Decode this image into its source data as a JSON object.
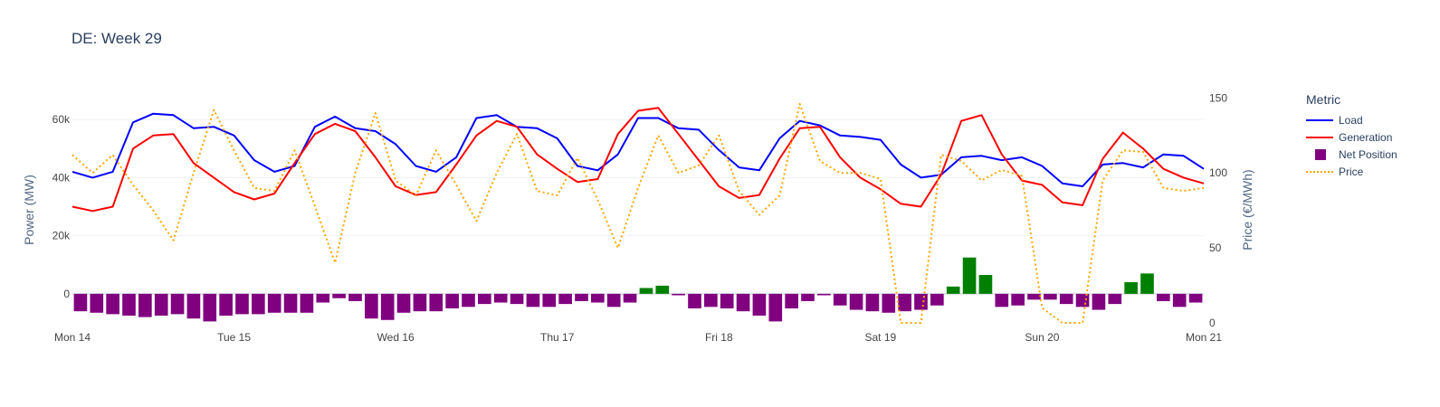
{
  "chart_data": {
    "type": "line",
    "title": "DE: Week 29",
    "xlabel": "",
    "ylabel": "Power (MW)",
    "y2label": "Price (€/MWh)",
    "ylim": [
      -10000,
      70000
    ],
    "y2lim": [
      0,
      155
    ],
    "xlim": [
      0,
      7
    ],
    "grid": true,
    "legend_position": "right",
    "legend_title": "Metric",
    "x_ticks": [
      "Mon 14",
      "Tue 15",
      "Wed 16",
      "Thu 17",
      "Fri 18",
      "Sat 19",
      "Sun 20",
      "Mon 21"
    ],
    "y_ticks": [
      0,
      20000,
      40000,
      60000
    ],
    "y_tick_labels": [
      "0",
      "20k",
      "40k",
      "60k"
    ],
    "y2_ticks": [
      0,
      50,
      100,
      150
    ],
    "y2_tick_labels": [
      "0",
      "50",
      "100",
      "150"
    ],
    "series": [
      {
        "name": "Load",
        "kind": "line",
        "axis": "y",
        "color": "#0000ff",
        "x": [
          0,
          0.125,
          0.25,
          0.375,
          0.5,
          0.625,
          0.75,
          0.875,
          1,
          1.125,
          1.25,
          1.375,
          1.5,
          1.625,
          1.75,
          1.875,
          2,
          2.125,
          2.25,
          2.375,
          2.5,
          2.625,
          2.75,
          2.875,
          3,
          3.125,
          3.25,
          3.375,
          3.5,
          3.625,
          3.75,
          3.875,
          4,
          4.125,
          4.25,
          4.375,
          4.5,
          4.625,
          4.75,
          4.875,
          5,
          5.125,
          5.25,
          5.375,
          5.5,
          5.625,
          5.75,
          5.875,
          6,
          6.125,
          6.25,
          6.375,
          6.5,
          6.625,
          6.75,
          6.875,
          7
        ],
        "y": [
          42000,
          40000,
          42000,
          59000,
          62000,
          61500,
          57000,
          57500,
          54500,
          46000,
          42000,
          44000,
          57500,
          61000,
          57000,
          56000,
          51500,
          44000,
          42000,
          47000,
          60500,
          61500,
          57500,
          57000,
          53500,
          44000,
          42500,
          48000,
          60500,
          60500,
          57000,
          56500,
          49500,
          43500,
          42500,
          53500,
          59500,
          58000,
          54500,
          54000,
          53000,
          44500,
          40000,
          41000,
          47000,
          47500,
          46000,
          47000,
          44000,
          38000,
          37000,
          44500,
          45000,
          43500,
          48000,
          47500,
          43000
        ]
      },
      {
        "name": "Generation",
        "kind": "line",
        "axis": "y",
        "color": "#ff0000",
        "x": [
          0,
          0.125,
          0.25,
          0.375,
          0.5,
          0.625,
          0.75,
          0.875,
          1,
          1.125,
          1.25,
          1.375,
          1.5,
          1.625,
          1.75,
          1.875,
          2,
          2.125,
          2.25,
          2.375,
          2.5,
          2.625,
          2.75,
          2.875,
          3,
          3.125,
          3.25,
          3.375,
          3.5,
          3.625,
          3.75,
          3.875,
          4,
          4.125,
          4.25,
          4.375,
          4.5,
          4.625,
          4.75,
          4.875,
          5,
          5.125,
          5.25,
          5.375,
          5.5,
          5.625,
          5.75,
          5.875,
          6,
          6.125,
          6.25,
          6.375,
          6.5,
          6.625,
          6.75,
          6.875,
          7
        ],
        "y": [
          30000,
          28500,
          30000,
          50000,
          54500,
          55000,
          45000,
          40000,
          35000,
          32500,
          34500,
          45000,
          55000,
          58500,
          56000,
          47000,
          37000,
          34000,
          35000,
          44500,
          54500,
          59500,
          57500,
          48000,
          43000,
          38500,
          39500,
          55000,
          63000,
          64000,
          55000,
          46000,
          37000,
          33000,
          34000,
          46500,
          57000,
          57500,
          47000,
          40000,
          36000,
          31000,
          30000,
          41000,
          59500,
          61500,
          48000,
          39000,
          37500,
          31500,
          30500,
          46500,
          55500,
          50000,
          43000,
          40000,
          38000
        ]
      },
      {
        "name": "Price",
        "kind": "line",
        "axis": "y2",
        "dash": "dot",
        "color": "#ffa500",
        "x": [
          0,
          0.125,
          0.25,
          0.375,
          0.5,
          0.625,
          0.75,
          0.875,
          1,
          1.125,
          1.25,
          1.375,
          1.5,
          1.625,
          1.75,
          1.875,
          2,
          2.125,
          2.25,
          2.375,
          2.5,
          2.625,
          2.75,
          2.875,
          3,
          3.125,
          3.25,
          3.375,
          3.5,
          3.625,
          3.75,
          3.875,
          4,
          4.125,
          4.25,
          4.375,
          4.5,
          4.625,
          4.75,
          4.875,
          5,
          5.125,
          5.25,
          5.375,
          5.5,
          5.625,
          5.75,
          5.875,
          6,
          6.125,
          6.25,
          6.375,
          6.5,
          6.625,
          6.75,
          6.875,
          7
        ],
        "y": [
          112,
          100,
          112,
          92,
          75,
          55,
          100,
          142,
          115,
          90,
          88,
          115,
          78,
          40,
          100,
          140,
          95,
          85,
          115,
          92,
          68,
          100,
          126,
          88,
          85,
          110,
          82,
          50,
          90,
          125,
          100,
          105,
          125,
          88,
          72,
          85,
          146,
          108,
          100,
          100,
          96,
          0,
          0,
          112,
          108,
          95,
          102,
          98,
          10,
          0,
          0,
          95,
          115,
          114,
          90,
          88,
          90
        ]
      },
      {
        "name": "Net Position",
        "kind": "bar",
        "axis": "y",
        "color_negative": "#800080",
        "color_positive": "#008000",
        "x": [
          0.05,
          0.15,
          0.25,
          0.35,
          0.45,
          0.55,
          0.65,
          0.75,
          0.85,
          0.95,
          1.05,
          1.15,
          1.25,
          1.35,
          1.45,
          1.55,
          1.65,
          1.75,
          1.85,
          1.95,
          2.05,
          2.15,
          2.25,
          2.35,
          2.45,
          2.55,
          2.65,
          2.75,
          2.85,
          2.95,
          3.05,
          3.15,
          3.25,
          3.35,
          3.45,
          3.55,
          3.65,
          3.75,
          3.85,
          3.95,
          4.05,
          4.15,
          4.25,
          4.35,
          4.45,
          4.55,
          4.65,
          4.75,
          4.85,
          4.95,
          5.05,
          5.15,
          5.25,
          5.35,
          5.45,
          5.55,
          5.65,
          5.75,
          5.85,
          5.95,
          6.05,
          6.15,
          6.25,
          6.35,
          6.45,
          6.55,
          6.65,
          6.75,
          6.85,
          6.95
        ],
        "y": [
          -6000,
          -6500,
          -7000,
          -7500,
          -8000,
          -7500,
          -7000,
          -8500,
          -9500,
          -7500,
          -7000,
          -7000,
          -6500,
          -6500,
          -6500,
          -3000,
          -1500,
          -2500,
          -8500,
          -9000,
          -6500,
          -6000,
          -6000,
          -5000,
          -4500,
          -3500,
          -3000,
          -3500,
          -4500,
          -4500,
          -3500,
          -2500,
          -3000,
          -4500,
          -3000,
          2000,
          2800,
          -500,
          -5000,
          -4500,
          -5000,
          -6000,
          -7500,
          -9500,
          -5000,
          -2500,
          -500,
          -4000,
          -5500,
          -6000,
          -6500,
          -6000,
          -5500,
          -4000,
          2500,
          12500,
          6500,
          -4500,
          -4000,
          -2000,
          -2000,
          -3500,
          -4500,
          -5500,
          -3500,
          4000,
          7000,
          -2500,
          -4500,
          -3000
        ]
      }
    ]
  }
}
